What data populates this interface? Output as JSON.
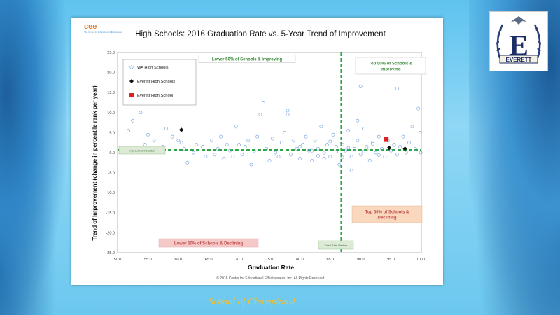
{
  "brand": {
    "logo_text": "cee",
    "logo_sub": "The Center for Educational Effectiveness"
  },
  "school_logo": {
    "letter": "E",
    "banner": "EVERETT"
  },
  "footer": {
    "motto": "School of Champions!"
  },
  "colors": {
    "accent_green": "#3aa646",
    "wa_marker": "#6c9bd6",
    "everett_marker": "#111111",
    "ehs_marker": "#e02020"
  },
  "chart_data": {
    "type": "scatter",
    "title": "High Schools: 2016 Graduation Rate vs. 5-Year Trend of Improvement",
    "xlabel": "Graduation Rate",
    "ylabel": "Trend of Improvement (change in percentile rank per year)",
    "xlim": [
      50,
      100
    ],
    "ylim": [
      -25,
      25
    ],
    "xticks": [
      "50.0",
      "55.0",
      "60.0",
      "65.0",
      "70.0",
      "75.0",
      "80.0",
      "85.0",
      "90.0",
      "95.0",
      "100.0"
    ],
    "yticks": [
      "25.0",
      "20.0",
      "15.0",
      "10.0",
      "5.0",
      "0.0",
      "-5.0",
      "-10.0",
      "-15.0",
      "-20.0",
      "-25.0"
    ],
    "grid": false,
    "legend_position": "top-left",
    "copyright": "© 2016 Center for Educational Effectiveness, Inc. All Rights Reserved.",
    "reference_lines": {
      "x": 86.8,
      "y": 0.7
    },
    "quadrant_labels": [
      {
        "text": "Lower 50% of Schools & Improving",
        "style": "green"
      },
      {
        "text": "Top 50% of Schools & Improving",
        "style": "green"
      },
      {
        "text": "Top 50% of Schools & Declining",
        "style": "orange"
      },
      {
        "text": "Lower 50% of Schools & Declining",
        "style": "red"
      }
    ],
    "line_labels": [
      {
        "text": "Improvement Median",
        "style": "green-small"
      },
      {
        "text": "Grad Rate Median",
        "style": "green-small"
      }
    ],
    "series": [
      {
        "name": "WA High Schools",
        "marker": "circle",
        "color": "#6c9bd6",
        "points": [
          [
            51,
            1.2
          ],
          [
            51.8,
            5.5
          ],
          [
            52.5,
            8
          ],
          [
            53.8,
            10
          ],
          [
            54.5,
            2
          ],
          [
            55,
            4.5
          ],
          [
            56,
            3
          ],
          [
            57.5,
            1.5
          ],
          [
            58,
            6
          ],
          [
            59,
            4
          ],
          [
            60,
            3
          ],
          [
            60.5,
            2.5
          ],
          [
            61,
            1
          ],
          [
            61.5,
            -2.5
          ],
          [
            62.5,
            0
          ],
          [
            63,
            2
          ],
          [
            64,
            1.5
          ],
          [
            64.5,
            -1
          ],
          [
            65.5,
            3
          ],
          [
            66,
            -0.5
          ],
          [
            66.5,
            1
          ],
          [
            67,
            4
          ],
          [
            67.5,
            -1.5
          ],
          [
            68,
            2
          ],
          [
            68.5,
            0.5
          ],
          [
            69,
            -1
          ],
          [
            69.5,
            6.5
          ],
          [
            70,
            2
          ],
          [
            70.5,
            -0.5
          ],
          [
            71,
            1.5
          ],
          [
            71.5,
            3
          ],
          [
            72,
            -3
          ],
          [
            72.5,
            0.5
          ],
          [
            73,
            4
          ],
          [
            73.5,
            9.5
          ],
          [
            74,
            12.5
          ],
          [
            74.5,
            1
          ],
          [
            75,
            -2
          ],
          [
            75.5,
            3.5
          ],
          [
            76,
            0
          ],
          [
            76.5,
            -1
          ],
          [
            77,
            2.5
          ],
          [
            77.5,
            5
          ],
          [
            78,
            10.5
          ],
          [
            78,
            9.5
          ],
          [
            78.5,
            -0.5
          ],
          [
            79,
            3
          ],
          [
            79.5,
            1
          ],
          [
            80,
            -1.5
          ],
          [
            80.5,
            2
          ],
          [
            81,
            4
          ],
          [
            81.5,
            0.5
          ],
          [
            82,
            -2
          ],
          [
            82.5,
            3
          ],
          [
            83,
            1
          ],
          [
            83.5,
            6.5
          ],
          [
            84,
            0
          ],
          [
            84.5,
            2
          ],
          [
            85,
            -1
          ],
          [
            85.5,
            4.5
          ],
          [
            86,
            1.5
          ],
          [
            86.5,
            -3
          ],
          [
            87,
            2
          ],
          [
            87.5,
            0.5
          ],
          [
            88,
            5.5
          ],
          [
            88.5,
            -1
          ],
          [
            89,
            1
          ],
          [
            89.5,
            3
          ],
          [
            90,
            -0.5
          ],
          [
            90.5,
            6
          ],
          [
            91,
            1.5
          ],
          [
            91.5,
            -2
          ],
          [
            92,
            2.5
          ],
          [
            92.5,
            0
          ],
          [
            93,
            4
          ],
          [
            93.5,
            1
          ],
          [
            94,
            -1
          ],
          [
            94.5,
            3
          ],
          [
            95,
            0.5
          ],
          [
            95.5,
            2
          ],
          [
            96,
            -0.5
          ],
          [
            96.5,
            1.5
          ],
          [
            97,
            4
          ],
          [
            97.5,
            0
          ],
          [
            98,
            2.5
          ],
          [
            98.5,
            6.5
          ],
          [
            99,
            1
          ],
          [
            99.5,
            11
          ],
          [
            99.8,
            5
          ],
          [
            99.9,
            0
          ],
          [
            90,
            16.5
          ],
          [
            96,
            16
          ],
          [
            89.5,
            8
          ],
          [
            88.5,
            -4.5
          ],
          [
            84,
            -1.5
          ],
          [
            82,
            0.5
          ],
          [
            80,
            1.5
          ],
          [
            86,
            0.2
          ],
          [
            88,
            1.2
          ],
          [
            91,
            0.8
          ],
          [
            93,
            -0.6
          ],
          [
            95.5,
            1.8
          ],
          [
            92,
            2.2
          ],
          [
            90.5,
            0.3
          ],
          [
            87,
            -1.2
          ],
          [
            85,
            2.8
          ],
          [
            83,
            -0.8
          ]
        ]
      },
      {
        "name": "Everett High Schools",
        "marker": "diamond",
        "color": "#111111",
        "points": [
          [
            60.5,
            5.7
          ],
          [
            94.7,
            1.2
          ],
          [
            97.3,
            1.0
          ]
        ]
      },
      {
        "name": "Everett High School",
        "marker": "square",
        "color": "#e02020",
        "points": [
          [
            94.2,
            3.3
          ]
        ]
      }
    ]
  }
}
